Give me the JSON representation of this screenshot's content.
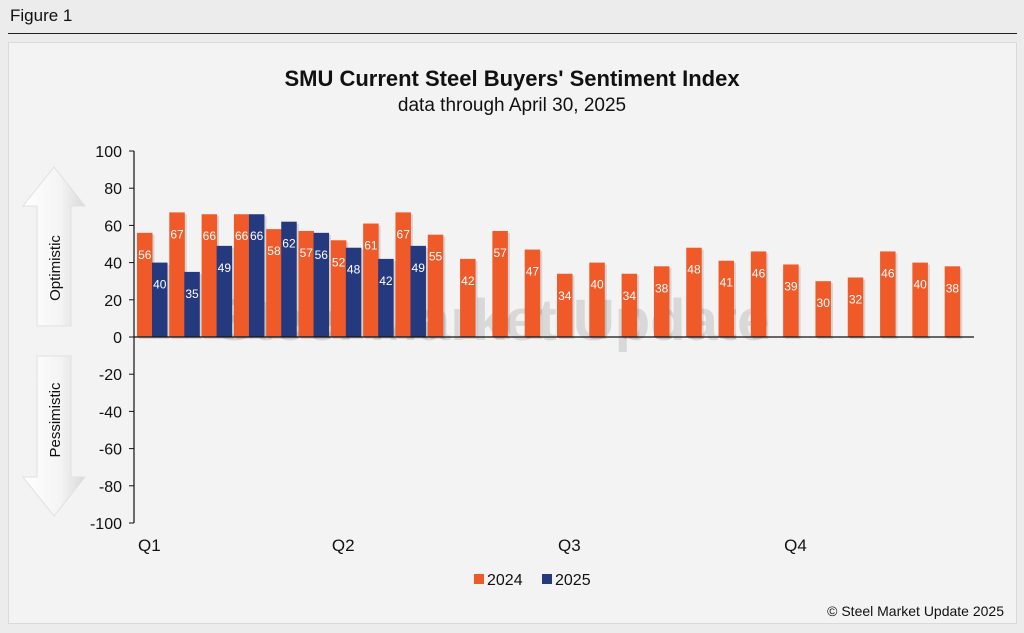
{
  "figure_label": "Figure 1",
  "copyright": "© Steel Market Update 2025",
  "watermark": "Steel Market Update",
  "arrows": {
    "up": "Optimistic",
    "down": "Pessimistic"
  },
  "colors": {
    "series_2024": "#f05a28",
    "series_2025": "#253a7e",
    "axis": "#111111"
  },
  "chart_data": {
    "type": "bar",
    "title": "SMU Current Steel Buyers' Sentiment Index",
    "subtitle": "data through April 30, 2025",
    "ylim": [
      -100,
      100
    ],
    "yticks": [
      100,
      80,
      60,
      40,
      20,
      0,
      -20,
      -40,
      -60,
      -80,
      -100
    ],
    "quarter_labels": [
      "Q1",
      "Q2",
      "Q3",
      "Q4"
    ],
    "legend": [
      "2024",
      "2025"
    ],
    "legend_position": "bottom-center",
    "grid": false,
    "series": [
      {
        "name": "2024",
        "values": [
          56,
          67,
          66,
          66,
          58,
          57,
          52,
          61,
          67,
          55,
          42,
          57,
          47,
          34,
          40,
          34,
          38,
          48,
          41,
          46,
          39,
          30,
          32,
          46,
          40,
          38
        ]
      },
      {
        "name": "2025",
        "values": [
          40,
          35,
          49,
          66,
          62,
          56,
          48,
          42,
          49
        ]
      }
    ]
  }
}
